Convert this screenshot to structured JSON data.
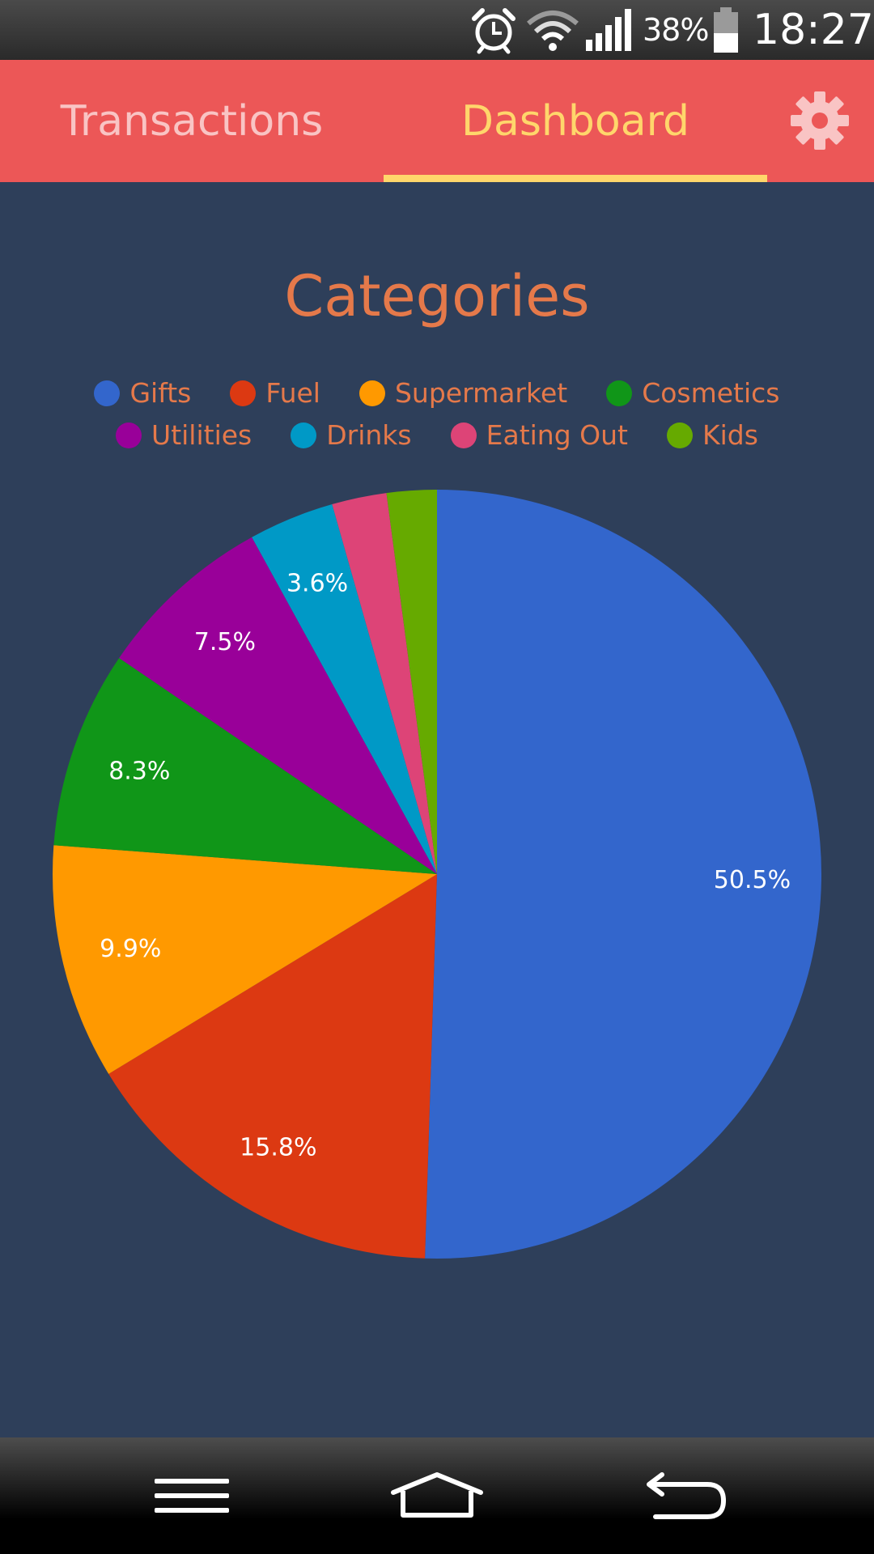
{
  "status_bar": {
    "battery_pct": "38%",
    "time": "18:27",
    "icons": [
      "alarm-icon",
      "wifi-icon",
      "signal-icon",
      "battery-icon"
    ]
  },
  "tabs": [
    {
      "label": "Transactions",
      "active": false
    },
    {
      "label": "Dashboard",
      "active": true
    }
  ],
  "settings_icon": "gear-icon",
  "colors": {
    "app_bar": "#ec5757",
    "active_tab": "#ffd66b",
    "inactive_tab": "#f9c4c4",
    "background": "#2e3f5a",
    "title": "#e5794a"
  },
  "chart_data": {
    "type": "pie",
    "title": "Categories",
    "legend_position": "top",
    "slices": [
      {
        "name": "Gifts",
        "value": 50.5,
        "color": "#3366cc",
        "label": "50.5%"
      },
      {
        "name": "Fuel",
        "value": 15.8,
        "color": "#dc3912",
        "label": "15.8%"
      },
      {
        "name": "Supermarket",
        "value": 9.9,
        "color": "#ff9900",
        "label": "9.9%"
      },
      {
        "name": "Cosmetics",
        "value": 8.3,
        "color": "#109618",
        "label": "8.3%"
      },
      {
        "name": "Utilities",
        "value": 7.5,
        "color": "#990099",
        "label": "7.5%"
      },
      {
        "name": "Drinks",
        "value": 3.6,
        "color": "#0099c6",
        "label": "3.6%"
      },
      {
        "name": "Eating Out",
        "value": 2.3,
        "color": "#dd4477",
        "label": ""
      },
      {
        "name": "Kids",
        "value": 2.1,
        "color": "#66aa00",
        "label": ""
      }
    ]
  },
  "nav_bar": {
    "icons": [
      "menu-icon",
      "home-icon",
      "back-icon"
    ]
  }
}
